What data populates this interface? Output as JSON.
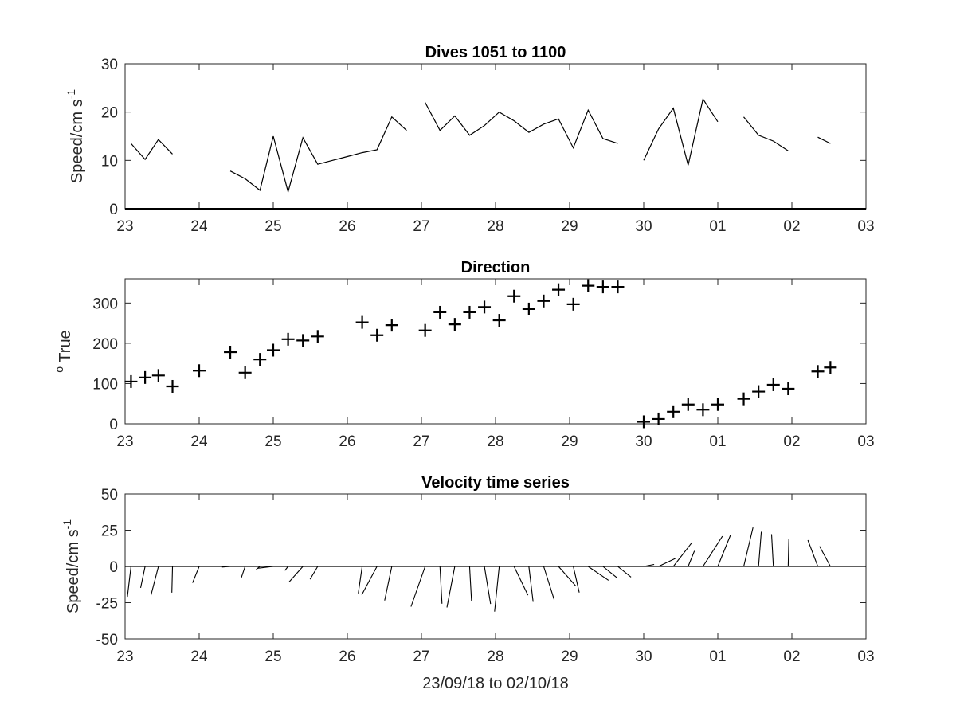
{
  "chart_data": [
    {
      "type": "line",
      "title": "Dives 1051 to 1100",
      "ylabel": "Speed/cm s",
      "ylabel_superscript": "-1",
      "xlabel": "",
      "xlim": [
        0,
        10
      ],
      "ylim": [
        0,
        30
      ],
      "x_tick_labels": [
        "23",
        "24",
        "25",
        "26",
        "27",
        "28",
        "29",
        "30",
        "01",
        "02",
        "03"
      ],
      "y_ticks": [
        0,
        10,
        20,
        30
      ],
      "series": [
        {
          "segments": [
            [
              [
                0.08,
                13.5
              ],
              [
                0.27,
                10.2
              ],
              [
                0.45,
                14.3
              ],
              [
                0.64,
                11.3
              ]
            ],
            [
              [
                1.42,
                7.8
              ],
              [
                1.62,
                6.2
              ],
              [
                1.82,
                3.8
              ],
              [
                2.0,
                15.0
              ],
              [
                2.2,
                3.5
              ],
              [
                2.4,
                14.7
              ],
              [
                2.6,
                9.2
              ],
              [
                2.8,
                10.0
              ],
              [
                3.0,
                10.8
              ],
              [
                3.2,
                11.6
              ],
              [
                3.4,
                12.2
              ],
              [
                3.6,
                19.0
              ],
              [
                3.8,
                16.2
              ]
            ],
            [
              [
                4.05,
                22.0
              ],
              [
                4.25,
                16.2
              ],
              [
                4.45,
                19.2
              ],
              [
                4.65,
                15.2
              ],
              [
                4.85,
                17.2
              ],
              [
                5.05,
                20.0
              ],
              [
                5.25,
                18.2
              ],
              [
                5.45,
                15.8
              ],
              [
                5.65,
                17.5
              ],
              [
                5.85,
                18.6
              ],
              [
                6.05,
                12.6
              ],
              [
                6.25,
                20.4
              ],
              [
                6.45,
                14.5
              ],
              [
                6.65,
                13.5
              ]
            ],
            [
              [
                7.0,
                10.0
              ],
              [
                7.2,
                16.5
              ],
              [
                7.4,
                20.8
              ],
              [
                7.6,
                9.0
              ],
              [
                7.8,
                22.7
              ],
              [
                8.0,
                18.0
              ]
            ],
            [
              [
                8.35,
                19.0
              ],
              [
                8.55,
                15.2
              ],
              [
                8.75,
                14.0
              ],
              [
                8.95,
                12.0
              ]
            ],
            [
              [
                9.35,
                14.8
              ],
              [
                9.52,
                13.5
              ]
            ]
          ]
        }
      ]
    },
    {
      "type": "scatter",
      "title": "Direction",
      "ylabel": "True",
      "ylabel_superscript": "o",
      "xlabel": "",
      "xlim": [
        0,
        10
      ],
      "ylim": [
        0,
        360
      ],
      "x_tick_labels": [
        "23",
        "24",
        "25",
        "26",
        "27",
        "28",
        "29",
        "30",
        "01",
        "02",
        "03"
      ],
      "y_ticks": [
        0,
        100,
        200,
        300
      ],
      "marker": "plus",
      "points": [
        [
          0.08,
          105
        ],
        [
          0.27,
          115
        ],
        [
          0.45,
          120
        ],
        [
          0.64,
          93
        ],
        [
          1.0,
          132
        ],
        [
          1.42,
          178
        ],
        [
          1.62,
          127
        ],
        [
          1.82,
          160
        ],
        [
          2.0,
          183
        ],
        [
          2.2,
          210
        ],
        [
          2.4,
          207
        ],
        [
          2.6,
          217
        ],
        [
          3.2,
          252
        ],
        [
          3.4,
          220
        ],
        [
          3.6,
          245
        ],
        [
          4.05,
          232
        ],
        [
          4.25,
          277
        ],
        [
          4.45,
          247
        ],
        [
          4.65,
          277
        ],
        [
          4.85,
          290
        ],
        [
          5.05,
          257
        ],
        [
          5.25,
          317
        ],
        [
          5.45,
          285
        ],
        [
          5.65,
          305
        ],
        [
          5.85,
          333
        ],
        [
          6.05,
          297
        ],
        [
          6.25,
          343
        ],
        [
          6.45,
          340
        ],
        [
          6.65,
          340
        ],
        [
          7.0,
          5
        ],
        [
          7.2,
          12
        ],
        [
          7.4,
          30
        ],
        [
          7.6,
          48
        ],
        [
          7.8,
          35
        ],
        [
          8.0,
          48
        ],
        [
          8.35,
          62
        ],
        [
          8.55,
          80
        ],
        [
          8.75,
          97
        ],
        [
          8.95,
          87
        ],
        [
          9.35,
          130
        ],
        [
          9.52,
          140
        ]
      ]
    },
    {
      "type": "quiver",
      "title": "Velocity time series",
      "ylabel": "Speed/cm s",
      "ylabel_superscript": "-1",
      "xlabel": "23/09/18 to 02/10/18",
      "xlim": [
        0,
        10
      ],
      "ylim": [
        -50,
        50
      ],
      "x_tick_labels": [
        "23",
        "24",
        "25",
        "26",
        "27",
        "28",
        "29",
        "30",
        "01",
        "02",
        "03"
      ],
      "y_ticks": [
        -50,
        -25,
        0,
        25,
        50
      ],
      "y_tick_labels": [
        "-50",
        "-25",
        "0",
        "25",
        "50"
      ],
      "vectors": [
        [
          0.08,
          -13.5,
          105
        ],
        [
          0.27,
          -10.2,
          115
        ],
        [
          0.45,
          -14.3,
          120
        ],
        [
          0.64,
          -11.3,
          93
        ],
        [
          1.0,
          -9.5,
          132
        ],
        [
          1.42,
          -7.8,
          178
        ],
        [
          1.62,
          -6.2,
          127
        ],
        [
          1.82,
          -3.8,
          160
        ],
        [
          2.0,
          -15.0,
          183
        ],
        [
          2.2,
          -3.5,
          210
        ],
        [
          2.4,
          -14.7,
          207
        ],
        [
          2.6,
          -9.2,
          217
        ],
        [
          3.2,
          -12.2,
          252
        ],
        [
          3.4,
          -19.0,
          220
        ],
        [
          3.6,
          -16.2,
          245
        ],
        [
          4.05,
          -22.0,
          232
        ],
        [
          4.25,
          -16.2,
          277
        ],
        [
          4.45,
          -19.2,
          247
        ],
        [
          4.65,
          -15.2,
          277
        ],
        [
          4.85,
          -17.2,
          290
        ],
        [
          5.05,
          -20.0,
          257
        ],
        [
          5.25,
          -18.2,
          317
        ],
        [
          5.45,
          -15.8,
          285
        ],
        [
          5.65,
          -17.5,
          305
        ],
        [
          5.85,
          -18.6,
          333
        ],
        [
          6.05,
          -12.6,
          297
        ],
        [
          6.25,
          -20.4,
          343
        ],
        [
          6.45,
          -14.5,
          340
        ],
        [
          6.65,
          -13.5,
          340
        ],
        [
          7.0,
          10.0,
          5
        ],
        [
          7.2,
          16.5,
          12
        ],
        [
          7.4,
          20.8,
          30
        ],
        [
          7.6,
          9.0,
          48
        ],
        [
          7.8,
          22.7,
          35
        ],
        [
          8.0,
          18.0,
          48
        ],
        [
          8.35,
          19.0,
          62
        ],
        [
          8.55,
          15.2,
          80
        ],
        [
          8.75,
          14.0,
          97
        ],
        [
          8.95,
          12.0,
          87
        ],
        [
          9.35,
          14.8,
          130
        ],
        [
          9.52,
          13.5,
          140
        ]
      ]
    }
  ]
}
